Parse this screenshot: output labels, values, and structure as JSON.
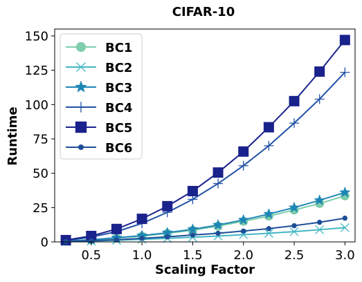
{
  "chart_data": {
    "type": "line",
    "title": "CIFAR-10",
    "xlabel": "Scaling Factor",
    "ylabel": "Runtime",
    "xlim": [
      0.14,
      3.1
    ],
    "ylim": [
      0,
      155
    ],
    "xticks": [
      "0.5",
      "1.0",
      "1.5",
      "2.0",
      "2.5",
      "3.0"
    ],
    "yticks": [
      "0",
      "25",
      "50",
      "75",
      "100",
      "125",
      "150"
    ],
    "grid": false,
    "legend_position": "top-left",
    "x": [
      0.25,
      0.5,
      0.75,
      1.0,
      1.25,
      1.5,
      1.75,
      2.0,
      2.25,
      2.5,
      2.75,
      3.0
    ],
    "series": [
      {
        "name": "BC1",
        "marker": "circle",
        "color": "#7fcdac",
        "values": [
          0.4,
          1.5,
          2.8,
          4.2,
          6.2,
          8.5,
          11.5,
          15.0,
          18.8,
          23.2,
          28.0,
          33.5
        ]
      },
      {
        "name": "BC2",
        "marker": "x",
        "color": "#41b6c4",
        "values": [
          0.2,
          0.6,
          1.2,
          1.9,
          2.6,
          3.4,
          4.3,
          5.3,
          6.3,
          7.5,
          8.9,
          10.4
        ]
      },
      {
        "name": "BC3",
        "marker": "star",
        "color": "#1d86b5",
        "values": [
          0.5,
          1.6,
          3.0,
          4.6,
          6.7,
          9.2,
          12.3,
          16.0,
          20.3,
          25.0,
          30.3,
          36.0
        ]
      },
      {
        "name": "BC4",
        "marker": "plus",
        "color": "#2150a6",
        "values": [
          1.0,
          3.5,
          7.5,
          13.5,
          21.5,
          31.0,
          42.5,
          55.5,
          70.0,
          86.5,
          104.0,
          123.5
        ]
      },
      {
        "name": "BC5",
        "marker": "square",
        "color": "#1a228c",
        "values": [
          1.3,
          4.3,
          9.4,
          16.8,
          26.0,
          37.0,
          50.5,
          65.8,
          83.5,
          102.5,
          124.0,
          147.0
        ]
      },
      {
        "name": "BC6",
        "marker": "dot",
        "color": "#1f4e99",
        "values": [
          0.3,
          0.8,
          1.6,
          2.6,
          3.7,
          5.0,
          6.3,
          7.9,
          9.7,
          11.8,
          14.3,
          17.3
        ]
      }
    ]
  }
}
